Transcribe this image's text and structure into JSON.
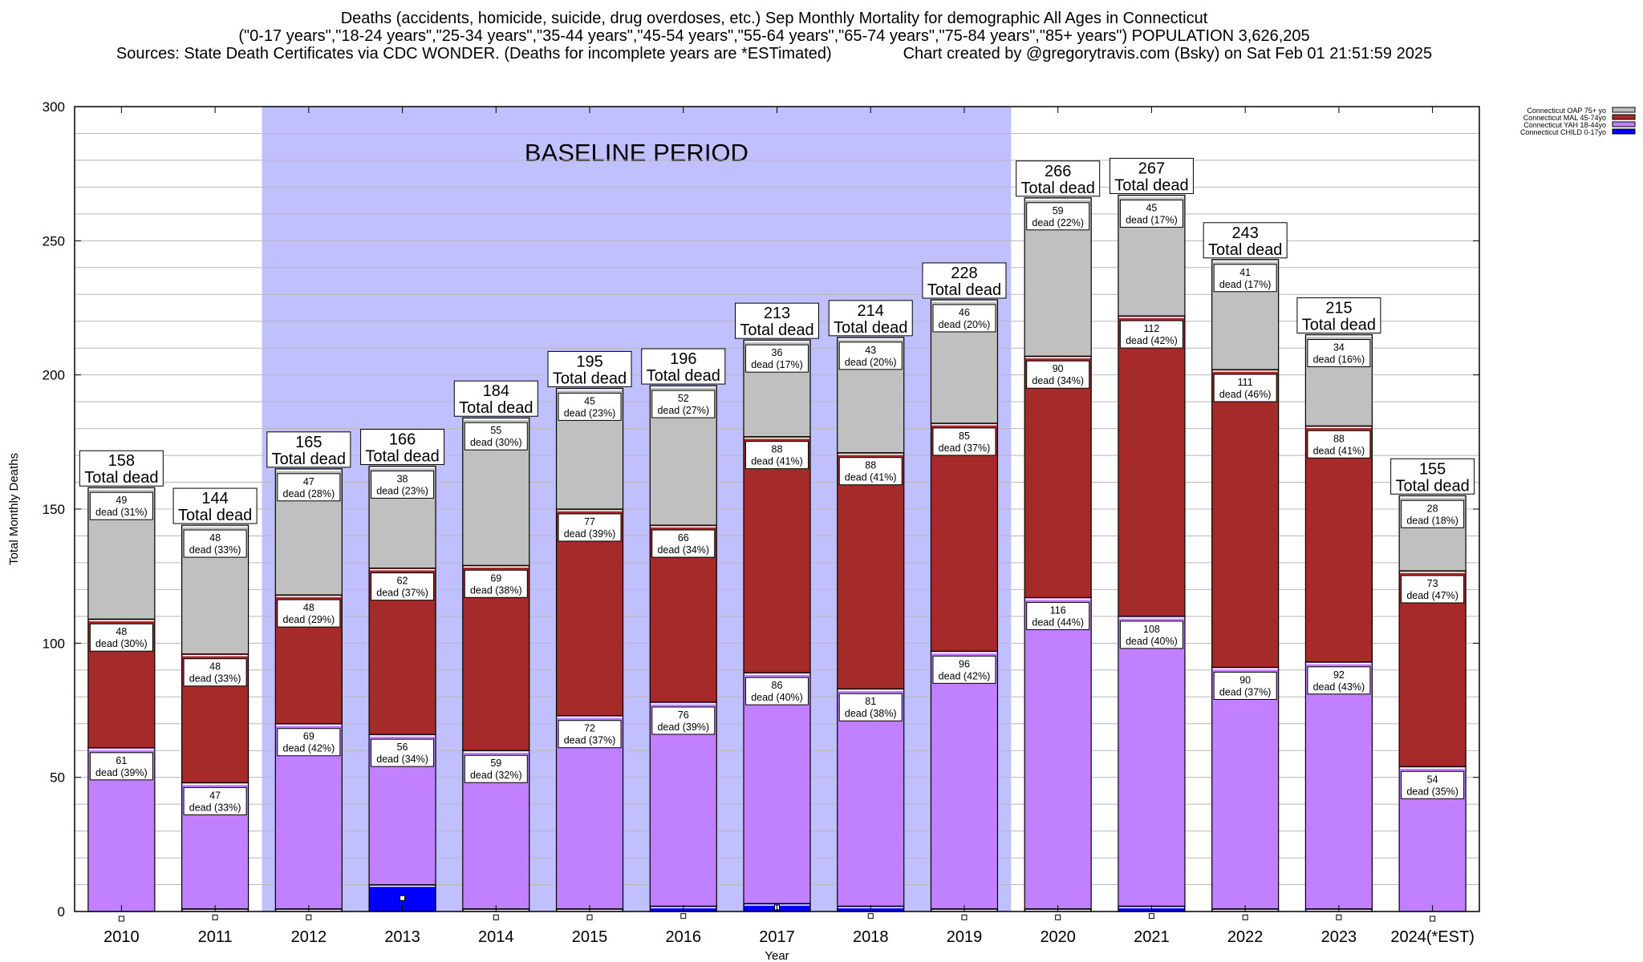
{
  "titles": {
    "line1": "Deaths (accidents, homicide, suicide, drug overdoses, etc.) Sep Monthly Mortality for demographic All Ages in Connecticut",
    "line2": "(\"0-17 years\",\"18-24 years\",\"25-34 years\",\"35-44 years\",\"45-54 years\",\"55-64 years\",\"65-74 years\",\"75-84 years\",\"85+ years\") POPULATION 3,626,205",
    "line3_left": "Sources: State Death Certificates via CDC WONDER. (Deaths for incomplete years are *ESTimated)",
    "line3_right": "Chart created by @gregorytravis.com (Bsky) on Sat Feb 01 21:51:59 2025"
  },
  "colors": {
    "oap": "#c0c0c0",
    "mal": "#a52a2a",
    "yah": "#c080ff",
    "child": "#0000ff",
    "baseline": "#c0c0ff",
    "grid": "#b8b8b8"
  },
  "chart_data": {
    "type": "bar",
    "stacked": true,
    "xlabel": "Year",
    "ylabel": "Total Monthly Deaths",
    "ylim": [
      0,
      300
    ],
    "yticks": [
      0,
      50,
      100,
      150,
      200,
      250,
      300
    ],
    "grid": true,
    "legend_position": "top-right",
    "categories": [
      "2010",
      "2011",
      "2012",
      "2013",
      "2014",
      "2015",
      "2016",
      "2017",
      "2018",
      "2019",
      "2020",
      "2021",
      "2022",
      "2023",
      "2024(*EST)"
    ],
    "series": [
      {
        "name": "Connecticut CHILD 0-17yo",
        "key": "child",
        "values": [
          0,
          1,
          1,
          10,
          1,
          1,
          2,
          3,
          2,
          1,
          1,
          2,
          1,
          1,
          0
        ]
      },
      {
        "name": "Connecticut YAH 18-44yo",
        "key": "yah",
        "values": [
          61,
          47,
          69,
          56,
          59,
          72,
          76,
          86,
          81,
          96,
          116,
          108,
          90,
          92,
          54
        ],
        "labels": [
          "dead (39%)",
          "dead (33%)",
          "dead (42%)",
          "dead (34%)",
          "dead (32%)",
          "dead (37%)",
          "dead (39%)",
          "dead (40%)",
          "dead (38%)",
          "dead (42%)",
          "dead (44%)",
          "dead (40%)",
          "dead (37%)",
          "dead (43%)",
          "dead (35%)"
        ]
      },
      {
        "name": "Connecticut MAL 45-74yo",
        "key": "mal",
        "values": [
          48,
          48,
          48,
          62,
          69,
          77,
          66,
          88,
          88,
          85,
          90,
          112,
          111,
          88,
          73
        ],
        "labels": [
          "dead (30%)",
          "dead (33%)",
          "dead (29%)",
          "dead (37%)",
          "dead (38%)",
          "dead (39%)",
          "dead (34%)",
          "dead (41%)",
          "dead (41%)",
          "dead (37%)",
          "dead (34%)",
          "dead (42%)",
          "dead (46%)",
          "dead (41%)",
          "dead (47%)"
        ]
      },
      {
        "name": "Connecticut OAP 75+ yo",
        "key": "oap",
        "values": [
          49,
          48,
          47,
          38,
          55,
          45,
          52,
          36,
          43,
          46,
          59,
          45,
          41,
          34,
          28
        ],
        "labels": [
          "dead (31%)",
          "dead (33%)",
          "dead (28%)",
          "dead (23%)",
          "dead (30%)",
          "dead (23%)",
          "dead (27%)",
          "dead (17%)",
          "dead (20%)",
          "dead (20%)",
          "dead (22%)",
          "dead (17%)",
          "dead (17%)",
          "dead (16%)",
          "dead (18%)"
        ]
      }
    ],
    "totals": [
      158,
      144,
      165,
      166,
      184,
      195,
      196,
      213,
      214,
      228,
      266,
      267,
      243,
      215,
      155
    ],
    "total_label": "Total dead",
    "baseline": {
      "label": "BASELINE PERIOD",
      "from": "2012",
      "to": "2019"
    }
  }
}
